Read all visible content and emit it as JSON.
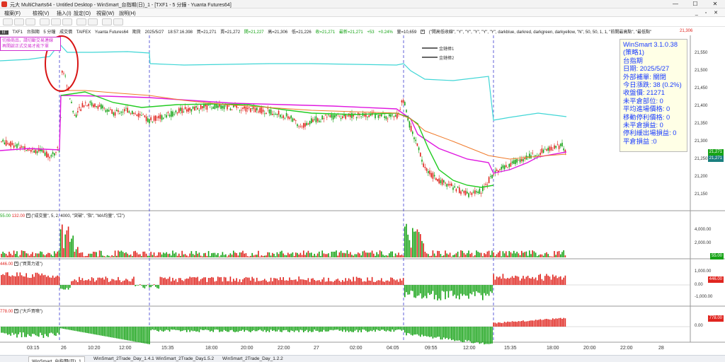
{
  "window": {
    "title": "元大 MultiCharts64 - Untitled Desktop - WinSmart_台指期(日)_1 - [TXF1 - 5 分鐘 - Yuanta Futures64]",
    "minimize_glyph": "—",
    "maximize_glyph": "☐",
    "close_glyph": "✕"
  },
  "menu": {
    "items": [
      "檔案(F)",
      "檢視(V)",
      "插入(I)",
      "設定(O)",
      "視窗(W)",
      "說明(H)"
    ],
    "right_icons": "_ ▫ ✕"
  },
  "chart_header": {
    "symbol_badge": "日:",
    "symbol": "TXF1",
    "name": "台指期",
    "interval": "5 分鐘",
    "type": "成交價",
    "exchange": "TAIFEX",
    "datasource": "Yuanta Futures64",
    "session_label": "期貨",
    "date": "2025/5/27",
    "time": "18:57:16.398",
    "bid": "買=21,271",
    "ask": "賣=21,272",
    "open": "開=21,227",
    "high": "高=21,306",
    "low": "低=21,226",
    "close": "收=21,271",
    "last": "最新=21,271",
    "change": "+53",
    "change_pct": "+0.24%",
    "volume": "量=10,659",
    "indicator_params": "(\"開高低收線\", \"Y\", \"Y\", \"Y\", \"Y\", \"Y\", darkblue, darkred, darkgreen, darkyellow, \"N\", 50, 50, 1, 1, \"前開最高點\", \"最低點\"",
    "right_value": "21,306"
  },
  "note_box": {
    "line1": "切換商品，請切斷交易連線",
    "line2": "再開啟正式交易才能下單"
  },
  "signal_labels": {
    "sig1": "金鏈棒1",
    "sig2": "金鏈棒2"
  },
  "info_box": {
    "lines": [
      "WinSmart 3.1.0.38",
      "(策略1)",
      "台指期",
      "日期: 2025/5/27",
      "外部補單: 關閉",
      "今日漲跌: 38 (0.2%)",
      "收盤價: 21271",
      "未平倉部位: 0",
      "平均進場價格: 0",
      "移動停利價格: 0",
      "未平倉損益: 0",
      "停利緩出場損益: 0",
      "平倉損益 :0"
    ]
  },
  "price_axis": {
    "labels": [
      "21,550",
      "21,500",
      "21,450",
      "21,400",
      "21,350",
      "21,300",
      "21,250",
      "21,200",
      "21,150"
    ],
    "current_tag": "21,271",
    "secondary_tag": "21,271"
  },
  "volume_pane": {
    "header_v1": "55.00",
    "header_v2": "132.00",
    "params": "(\"成交量\", 5, 2, 4000, \"突破\", \"指\", \"MA均量\", \"口\")",
    "axis": [
      "4,000.00",
      "2,000.00"
    ],
    "tag": "55.00"
  },
  "force_pane": {
    "header_v1": "446.00",
    "params": "(\"買賣力道\")",
    "axis": [
      "1,000.00",
      "0.00",
      "-1,000.00"
    ],
    "tag": "446.00"
  },
  "bigplayer_pane": {
    "header_v1": "778.00",
    "params": "(\"大戶買噴\")",
    "axis": [
      "0.00"
    ],
    "tag": "778.00"
  },
  "time_axis": {
    "labels": [
      "03:15",
      "26",
      "10:20",
      "12:00",
      "15:35",
      "18:00",
      "20:00",
      "22:00",
      "27",
      "02:00",
      "04:05",
      "09:55",
      "12:00",
      "15:35",
      "18:00",
      "20:00",
      "22:00",
      "28"
    ]
  },
  "tabs": [
    {
      "label": "WinSmart_台指期(日)_1",
      "active": true
    },
    {
      "label": "WinSmart_2Trade_Day_1.4.1",
      "active": false
    },
    {
      "label": "WinSmart_2Trade_Day1.5.2",
      "active": false
    },
    {
      "label": "WinSmart_2Trade_Day_1.2.2",
      "active": false
    }
  ],
  "colors": {
    "candle_up": "#e0251f",
    "candle_down": "#16a316",
    "magenta_line": "#e019e0",
    "green_line": "#22cc22",
    "orange_line": "#f07a2a",
    "cyan_line": "#40d6d6",
    "session_divider": "#3a3ad0",
    "annotation_circle": "#d81414"
  }
}
